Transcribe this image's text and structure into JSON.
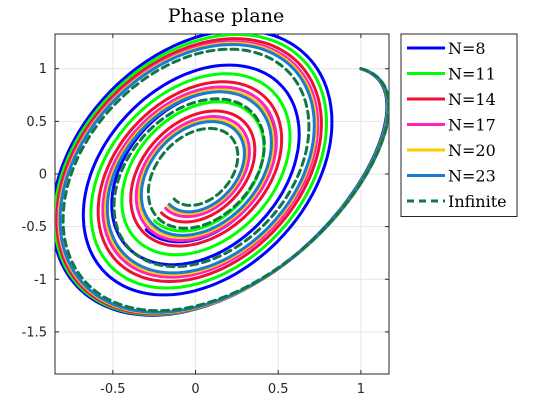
{
  "chart_data": {
    "type": "line",
    "title": "Phase plane",
    "xlabel": "",
    "ylabel": "",
    "xlim": [
      -0.85,
      1.17
    ],
    "ylim": [
      -1.9,
      1.33
    ],
    "xticks": [
      -0.5,
      0,
      0.5,
      1
    ],
    "xtick_labels": [
      "-0.5",
      "0",
      "0.5",
      "1"
    ],
    "yticks": [
      -1.5,
      -1,
      -0.5,
      0,
      0.5,
      1
    ],
    "ytick_labels": [
      "-1.5",
      "-1",
      "-0.5",
      "0",
      "0.5",
      "1"
    ],
    "grid": true,
    "legend_position": "outside-right",
    "start_point": [
      1,
      1
    ],
    "series": [
      {
        "name": "N=8",
        "color": "#0000ff",
        "style": "solid",
        "spiral": {
          "center": [
            0.02,
            0.02
          ],
          "amp": 1.48,
          "decay": 0.155,
          "omega": 3.45,
          "turns": 3.4
        }
      },
      {
        "name": "N=11",
        "color": "#00ff00",
        "style": "solid",
        "spiral": {
          "center": [
            0.02,
            0.02
          ],
          "amp": 1.5,
          "decay": 0.185,
          "omega": 3.45,
          "turns": 3.4
        }
      },
      {
        "name": "N=14",
        "color": "#ee1133",
        "style": "solid",
        "spiral": {
          "center": [
            0.02,
            0.02
          ],
          "amp": 1.52,
          "decay": 0.215,
          "omega": 3.45,
          "turns": 3.4
        }
      },
      {
        "name": "N=17",
        "color": "#ff22bb",
        "style": "solid",
        "spiral": {
          "center": [
            0.02,
            0.02
          ],
          "amp": 1.53,
          "decay": 0.235,
          "omega": 3.45,
          "turns": 3.4
        }
      },
      {
        "name": "N=20",
        "color": "#ffcc00",
        "style": "solid",
        "spiral": {
          "center": [
            0.02,
            0.02
          ],
          "amp": 1.54,
          "decay": 0.248,
          "omega": 3.45,
          "turns": 3.4
        }
      },
      {
        "name": "N=23",
        "color": "#1a7ad4",
        "style": "solid",
        "spiral": {
          "center": [
            0.02,
            0.02
          ],
          "amp": 1.54,
          "decay": 0.255,
          "omega": 3.45,
          "turns": 3.4
        }
      },
      {
        "name": "Infinite",
        "color": "#117744",
        "style": "dashed",
        "spiral": {
          "center": [
            0.02,
            0.02
          ],
          "amp": 1.55,
          "decay": 0.285,
          "omega": 3.45,
          "turns": 3.4
        }
      }
    ]
  }
}
